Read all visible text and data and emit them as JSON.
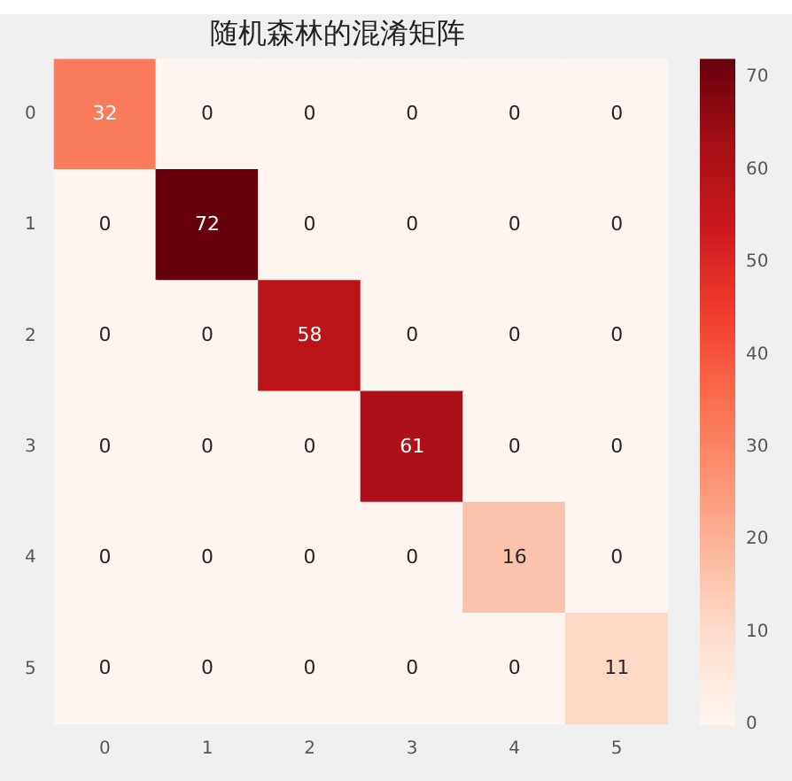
{
  "chart_data": {
    "type": "heatmap",
    "title": "随机森林的混淆矩阵",
    "categories": [
      "0",
      "1",
      "2",
      "3",
      "4",
      "5"
    ],
    "y_categories": [
      "0",
      "1",
      "2",
      "3",
      "4",
      "5"
    ],
    "cells": [
      [
        32,
        0,
        0,
        0,
        0,
        0
      ],
      [
        0,
        72,
        0,
        0,
        0,
        0
      ],
      [
        0,
        0,
        58,
        0,
        0,
        0
      ],
      [
        0,
        0,
        0,
        61,
        0,
        0
      ],
      [
        0,
        0,
        0,
        0,
        16,
        0
      ],
      [
        0,
        0,
        0,
        0,
        0,
        11
      ]
    ],
    "clim": [
      0,
      72
    ],
    "cticks": [
      0,
      10,
      20,
      30,
      40,
      50,
      60,
      70
    ],
    "data_labels": true,
    "grid": false
  }
}
